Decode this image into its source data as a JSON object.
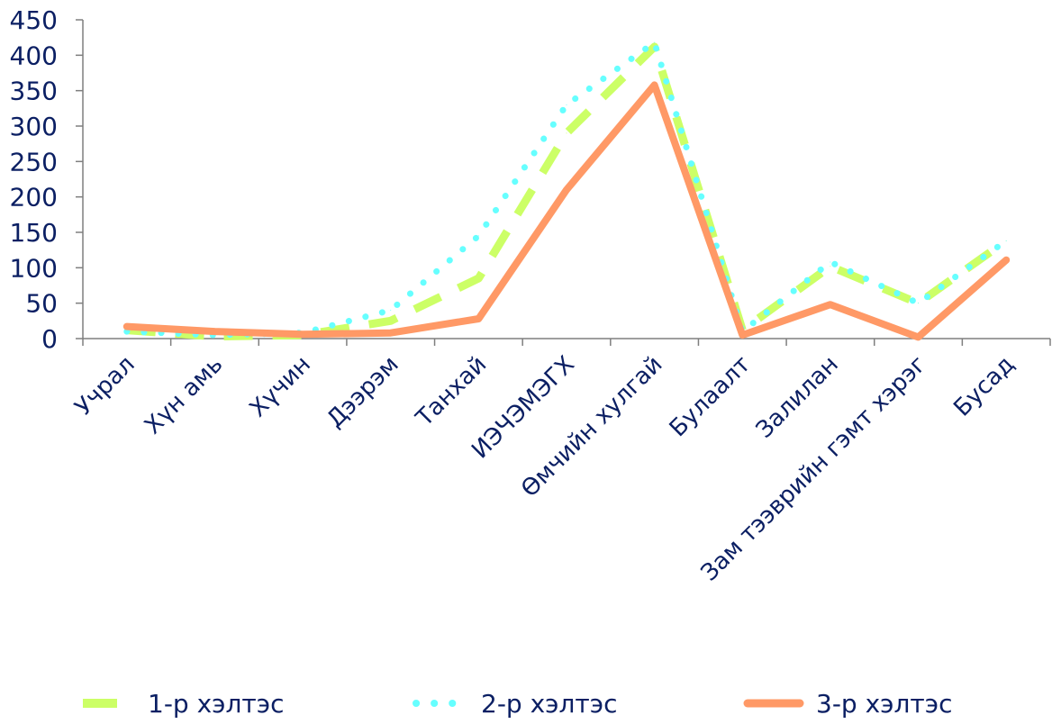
{
  "chart_data": {
    "type": "line",
    "title": "",
    "xlabel": "",
    "ylabel": "",
    "ylim": [
      0,
      450
    ],
    "yticks": [
      0,
      50,
      100,
      150,
      200,
      250,
      300,
      350,
      400,
      450
    ],
    "grid": false,
    "legend_position": "bottom",
    "categories": [
      "Учрал",
      "Хүн амь",
      "Хүчин",
      "Дээрэм",
      "Танхай",
      "ИЭЧЭМЭГХ",
      "Өмчийн хулгай",
      "Булаалт",
      "Залилан",
      "Зам тээврийн гэмт хэрэг",
      "Бусад"
    ],
    "series": [
      {
        "name": "1-р хэлтэс",
        "values": [
          12,
          3,
          5,
          25,
          85,
          290,
          412,
          12,
          102,
          50,
          138
        ],
        "color": "#ccff66",
        "style": "dashed"
      },
      {
        "name": "2-р хэлтэс",
        "values": [
          10,
          5,
          8,
          40,
          145,
          330,
          418,
          10,
          108,
          50,
          138
        ],
        "color": "#66ffff",
        "style": "dotted"
      },
      {
        "name": "3-р хэлтэс",
        "values": [
          17,
          10,
          6,
          8,
          28,
          210,
          358,
          5,
          48,
          2,
          111
        ],
        "color": "#ff9966",
        "style": "solid"
      }
    ]
  }
}
